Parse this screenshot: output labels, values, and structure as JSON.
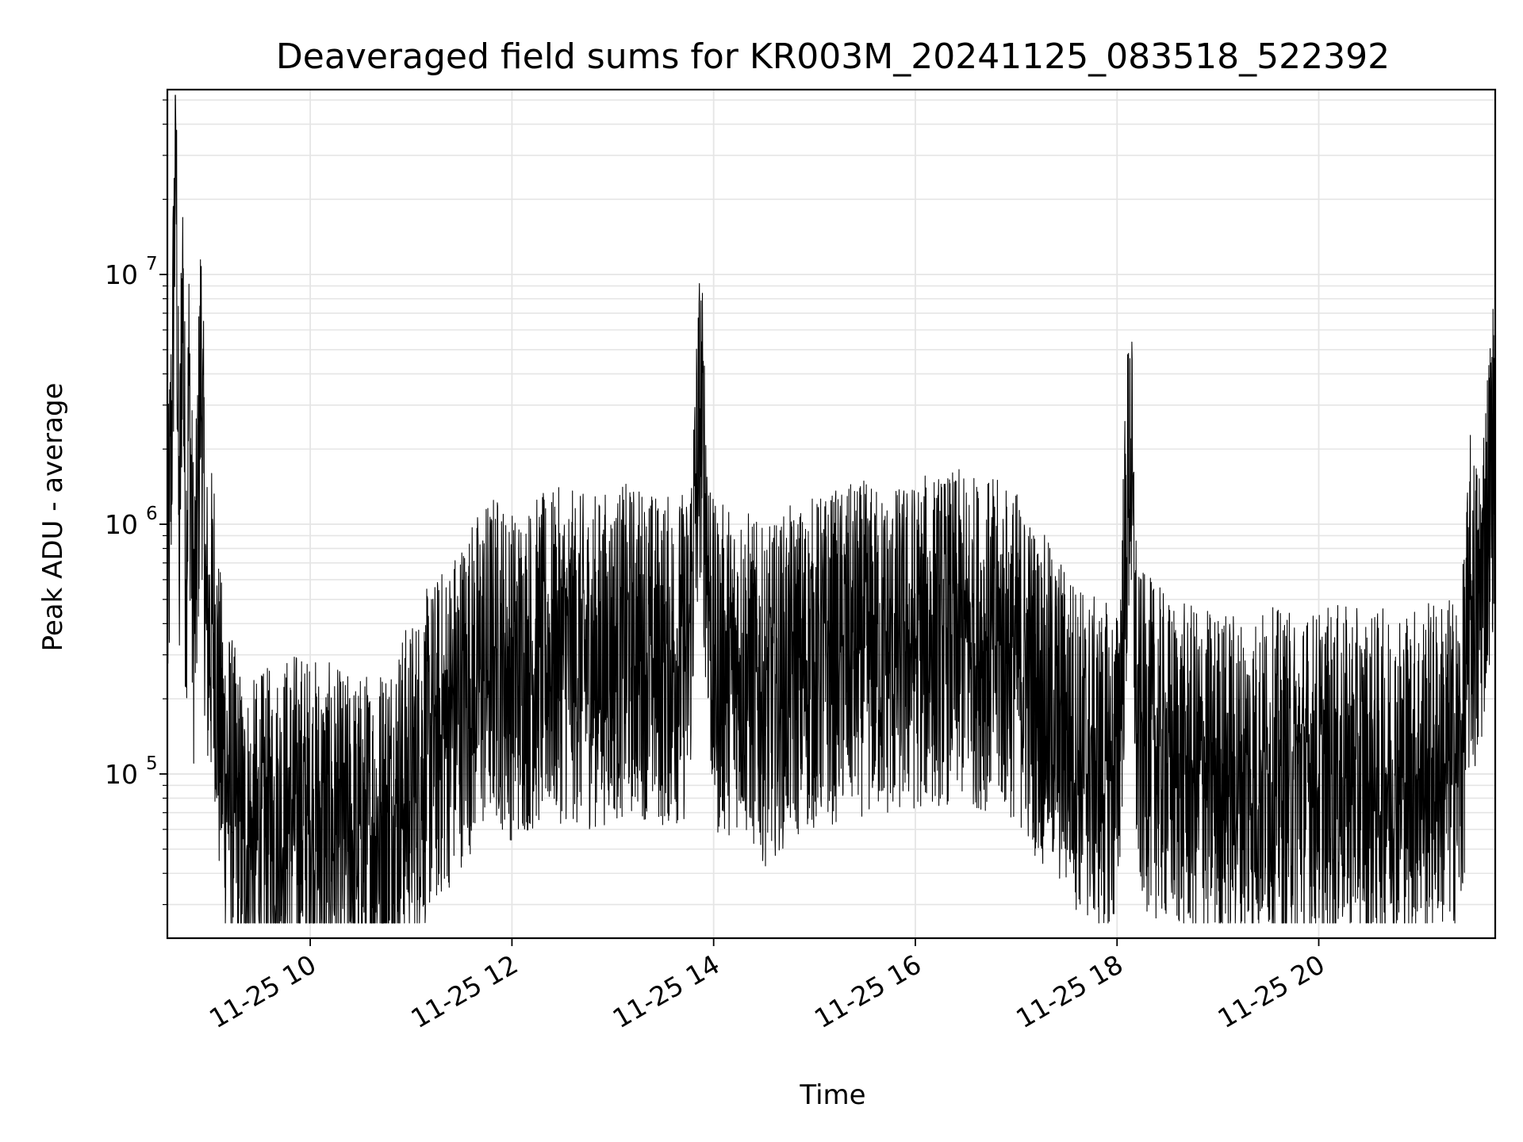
{
  "chart_data": {
    "type": "line",
    "title": "Deaveraged field sums for KR003M_20241125_083518_522392",
    "xlabel": "Time",
    "ylabel": "Peak ADU - average",
    "x_scale": "time",
    "y_scale": "log",
    "xlim": [
      "2024-11-25 08:35",
      "2024-11-25 21:45"
    ],
    "ylim": [
      22000,
      55000000
    ],
    "x_ticks": [
      {
        "value": "2024-11-25 10:00",
        "label": "11-25 10"
      },
      {
        "value": "2024-11-25 12:00",
        "label": "11-25 12"
      },
      {
        "value": "2024-11-25 14:00",
        "label": "11-25 14"
      },
      {
        "value": "2024-11-25 16:00",
        "label": "11-25 16"
      },
      {
        "value": "2024-11-25 18:00",
        "label": "11-25 18"
      },
      {
        "value": "2024-11-25 20:00",
        "label": "11-25 20"
      }
    ],
    "y_ticks": [
      {
        "value": 100000,
        "base": "10",
        "exp": "5"
      },
      {
        "value": 1000000,
        "base": "10",
        "exp": "6"
      },
      {
        "value": 10000000,
        "base": "10",
        "exp": "7"
      }
    ],
    "grid": true,
    "line_color": "#000000",
    "grid_color": "#e5e5e5",
    "series": [
      {
        "x": [
          "08:35",
          "08:38",
          "08:40",
          "08:42",
          "08:44",
          "08:46",
          "08:48",
          "08:50",
          "08:52",
          "08:55",
          "08:58",
          "09:00",
          "09:03",
          "09:06",
          "09:10",
          "09:15",
          "09:20",
          "09:25",
          "09:30",
          "09:40",
          "09:50",
          "10:00",
          "10:10",
          "10:20",
          "10:30",
          "10:40",
          "10:50",
          "11:00",
          "11:10",
          "11:20",
          "11:30",
          "11:40",
          "11:50",
          "12:00",
          "12:15",
          "12:30",
          "12:45",
          "13:00",
          "13:15",
          "13:30",
          "13:45",
          "13:52",
          "14:00",
          "14:15",
          "14:30",
          "14:45",
          "15:00",
          "15:15",
          "15:30",
          "15:45",
          "16:00",
          "16:15",
          "16:30",
          "16:45",
          "17:00",
          "17:15",
          "17:30",
          "17:45",
          "18:00",
          "18:08",
          "18:12",
          "18:20",
          "18:30",
          "18:45",
          "19:00",
          "19:15",
          "19:30",
          "19:45",
          "20:00",
          "20:15",
          "20:30",
          "20:45",
          "21:00",
          "21:15",
          "21:25",
          "21:30",
          "21:35",
          "21:40",
          "21:45"
        ],
        "y": [
          400000,
          3500000,
          40000000,
          600000,
          12000000,
          600000,
          3600000,
          500000,
          500000,
          4800000,
          400000,
          350000,
          400000,
          150000,
          100000,
          70000,
          55000,
          50000,
          55000,
          60000,
          70000,
          65000,
          60000,
          55000,
          55000,
          60000,
          75000,
          90000,
          120000,
          150000,
          200000,
          250000,
          300000,
          250000,
          280000,
          300000,
          280000,
          300000,
          320000,
          280000,
          300000,
          2900000,
          250000,
          280000,
          200000,
          250000,
          280000,
          300000,
          320000,
          300000,
          330000,
          350000,
          350000,
          330000,
          300000,
          200000,
          150000,
          110000,
          100000,
          2200000,
          140000,
          130000,
          110000,
          100000,
          100000,
          95000,
          100000,
          95000,
          100000,
          100000,
          95000,
          100000,
          105000,
          110000,
          115000,
          500000,
          400000,
          1000000,
          2200000
        ]
      }
    ]
  }
}
